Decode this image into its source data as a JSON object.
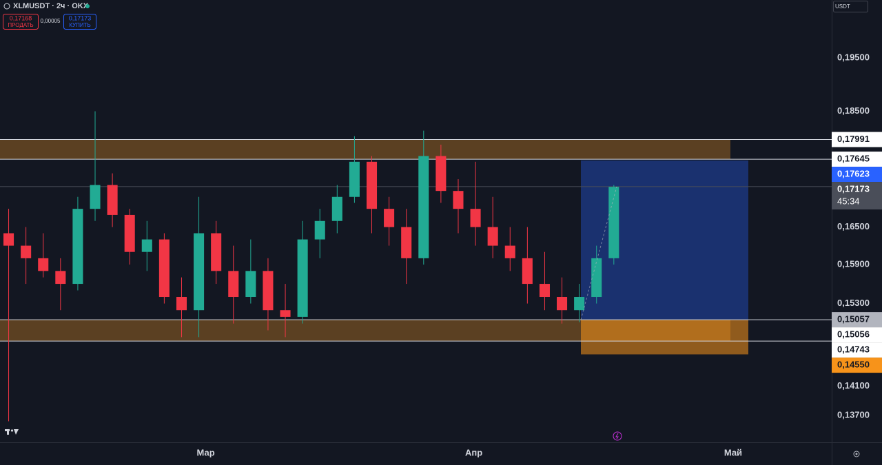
{
  "header": {
    "symbol": "XLMUSDT · 2ч · OKX",
    "sell_price": "0,17168",
    "sell_label": "ПРОДАТЬ",
    "spread": "0,00005",
    "buy_price": "0,17173",
    "buy_label": "КУПИТЬ",
    "currency": "USDT"
  },
  "chart_data": {
    "type": "candlestick",
    "log_scale": true,
    "grid": false,
    "up_color": "#22ab94",
    "down_color": "#f23645",
    "ylim": [
      0.1334,
      0.2065
    ],
    "yticks": [
      {
        "value": 0.195,
        "label": "0,19500"
      },
      {
        "value": 0.185,
        "label": "0,18500"
      },
      {
        "value": 0.165,
        "label": "0,16500"
      },
      {
        "value": 0.159,
        "label": "0,15900"
      },
      {
        "value": 0.153,
        "label": "0,15300"
      },
      {
        "value": 0.141,
        "label": "0,14100"
      },
      {
        "value": 0.137,
        "label": "0,13700"
      }
    ],
    "xlim": [
      0,
      96.2
    ],
    "xticks": [
      {
        "value": 23.8,
        "label": "Мар"
      },
      {
        "value": 54.8,
        "label": "Апр"
      },
      {
        "value": 84.8,
        "label": "Май"
      }
    ],
    "x": [
      1,
      3,
      5,
      7,
      9,
      11,
      13,
      15,
      17,
      19,
      21,
      23,
      25,
      27,
      29,
      31,
      33,
      35,
      37,
      39,
      41,
      43,
      45,
      47,
      49,
      51,
      53,
      55,
      57,
      59,
      61,
      63,
      65,
      67,
      69,
      71
    ],
    "open": [
      0.164,
      0.162,
      0.16,
      0.158,
      0.156,
      0.168,
      0.172,
      0.167,
      0.161,
      0.163,
      0.154,
      0.152,
      0.164,
      0.158,
      0.154,
      0.158,
      0.152,
      0.151,
      0.163,
      0.166,
      0.17,
      0.176,
      0.168,
      0.165,
      0.16,
      0.177,
      0.171,
      0.168,
      0.165,
      0.162,
      0.16,
      0.156,
      0.154,
      0.152,
      0.154,
      0.16
    ],
    "high": [
      0.168,
      0.165,
      0.164,
      0.16,
      0.17,
      0.185,
      0.174,
      0.168,
      0.166,
      0.164,
      0.157,
      0.17,
      0.166,
      0.162,
      0.163,
      0.16,
      0.156,
      0.166,
      0.168,
      0.172,
      0.1805,
      0.177,
      0.17,
      0.168,
      0.1815,
      0.179,
      0.173,
      0.176,
      0.17,
      0.165,
      0.165,
      0.161,
      0.157,
      0.156,
      0.162,
      0.172
    ],
    "low": [
      0.1362,
      0.156,
      0.157,
      0.152,
      0.155,
      0.166,
      0.165,
      0.159,
      0.158,
      0.153,
      0.148,
      0.148,
      0.156,
      0.15,
      0.153,
      0.149,
      0.148,
      0.15,
      0.16,
      0.164,
      0.169,
      0.164,
      0.162,
      0.156,
      0.159,
      0.169,
      0.164,
      0.162,
      0.16,
      0.158,
      0.153,
      0.152,
      0.15,
      0.1502,
      0.153,
      0.159
    ],
    "close": [
      0.162,
      0.16,
      0.158,
      0.156,
      0.168,
      0.172,
      0.167,
      0.161,
      0.163,
      0.154,
      0.152,
      0.164,
      0.158,
      0.154,
      0.158,
      0.152,
      0.151,
      0.163,
      0.166,
      0.17,
      0.176,
      0.168,
      0.165,
      0.16,
      0.177,
      0.171,
      0.168,
      0.165,
      0.162,
      0.16,
      0.156,
      0.154,
      0.152,
      0.154,
      0.16,
      0.1717
    ],
    "zones": [
      {
        "from": 0.17645,
        "to": 0.17991,
        "color": "#5b4022"
      },
      {
        "from": 0.14743,
        "to": 0.15057,
        "color": "#5b4022"
      }
    ],
    "position": {
      "entry": 0.15057,
      "target": 0.17623,
      "stop": 0.1455,
      "target_color": "#2962ff",
      "stop_color": "#f7931a"
    },
    "levels": [
      {
        "value": 0.17991,
        "label": "0,17991",
        "color": "#ffffff",
        "text_color": "#131722",
        "line": true
      },
      {
        "value": 0.17645,
        "label": "0,17645",
        "color": "#ffffff",
        "text_color": "#131722",
        "line": true
      },
      {
        "value": 0.17623,
        "label": "0,17623",
        "color": "#2962ff",
        "text_color": "#ffffff",
        "line": false
      },
      {
        "value": 0.17173,
        "label": "0,17173",
        "color": "#4a4e59",
        "text_color": "#ffffff",
        "line": true,
        "countdown": "45:34"
      },
      {
        "value": 0.15057,
        "label": "0,15057",
        "color": "#b2b5be",
        "text_color": "#131722",
        "line": true
      },
      {
        "value": 0.15056,
        "label": "0,15056",
        "color": "#ffffff",
        "text_color": "#131722",
        "line": false
      },
      {
        "value": 0.14743,
        "label": "0,14743",
        "color": "#ffffff",
        "text_color": "#131722",
        "line": true
      },
      {
        "value": 0.1455,
        "label": "0,14550",
        "color": "#f7931a",
        "text_color": "#131722",
        "line": false
      }
    ]
  }
}
